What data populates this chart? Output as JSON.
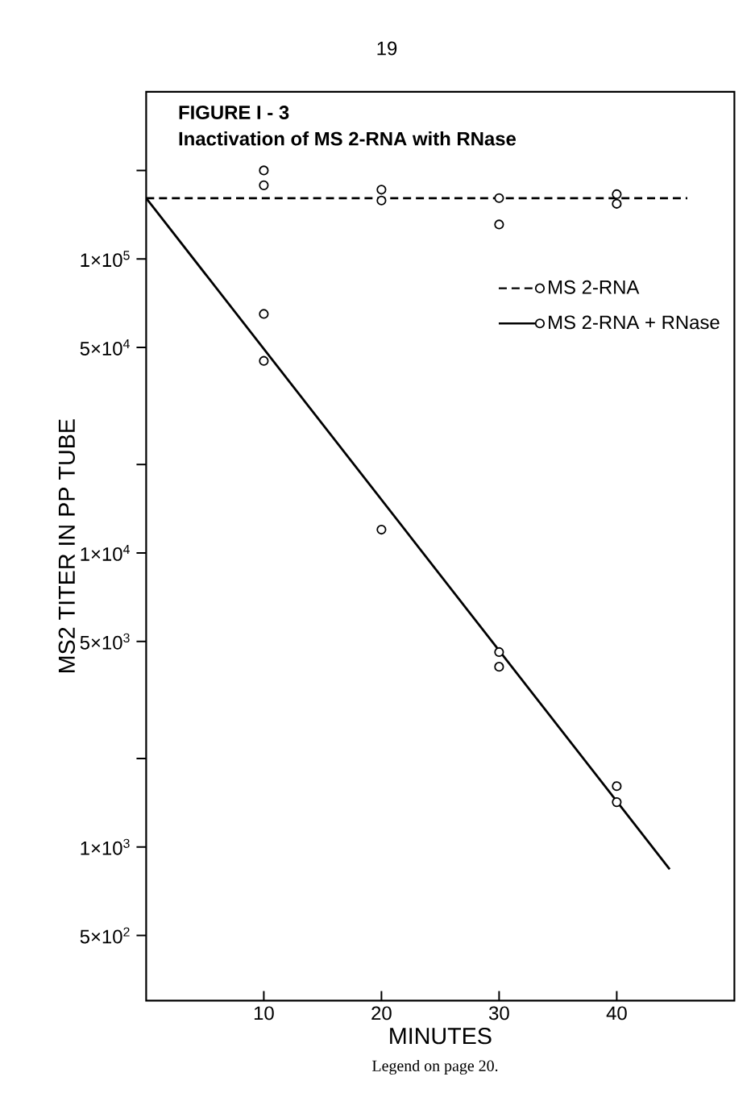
{
  "chart_data": {
    "type": "scatter",
    "title": "FIGURE I - 3",
    "subtitle": "Inactivation of MS 2-RNA with RNase",
    "xlabel": "MINUTES",
    "ylabel": "MS2 TITER IN PP TUBE",
    "annotations": [
      "19",
      "Legend on page 20."
    ],
    "log": "y",
    "legend": "top right",
    "marker": "circle",
    "xlim": [
      0,
      50
    ],
    "ylim": [
      300,
      370000
    ],
    "xticks": [
      10,
      20,
      30,
      40
    ],
    "yticks": [
      {
        "value": 500,
        "label": "5×10$^{2}$"
      },
      {
        "value": 1000,
        "label": "1×10$^{3}$"
      },
      {
        "value": 2000,
        "label": null
      },
      {
        "value": 5000,
        "label": "5×10$^{3}$"
      },
      {
        "value": 10000,
        "label": "1×10$^{4}$"
      },
      {
        "value": 20000,
        "label": null
      },
      {
        "value": 50000,
        "label": "5×10$^{4}$"
      },
      {
        "value": 100000,
        "label": "1×10$^{5}$"
      },
      {
        "value": 200000,
        "label": null
      }
    ],
    "series": [
      {
        "name": "MS 2-RNA",
        "color": "#000000",
        "line_style": "dashed",
        "x": [
          10,
          10,
          20,
          20,
          30,
          30,
          40,
          40
        ],
        "values": [
          200000,
          178000,
          172000,
          158000,
          161000,
          131000,
          166000,
          154000
        ]
      },
      {
        "type": "line",
        "color": "#000000",
        "line_style": "dashed",
        "marker": "none",
        "x": [
          0,
          46
        ],
        "values": [
          161000,
          161000
        ]
      },
      {
        "name": "MS 2-RNA + RNase",
        "color": "#000000",
        "line_style": "solid",
        "x": [
          10,
          10,
          20,
          30,
          30,
          40,
          40
        ],
        "values": [
          65000,
          45000,
          12000,
          4600,
          4100,
          1610,
          1420
        ]
      },
      {
        "type": "line",
        "color": "#000000",
        "line_style": "solid",
        "marker": "none",
        "x": [
          0,
          44.5
        ],
        "values": [
          161000,
          840
        ]
      }
    ]
  }
}
